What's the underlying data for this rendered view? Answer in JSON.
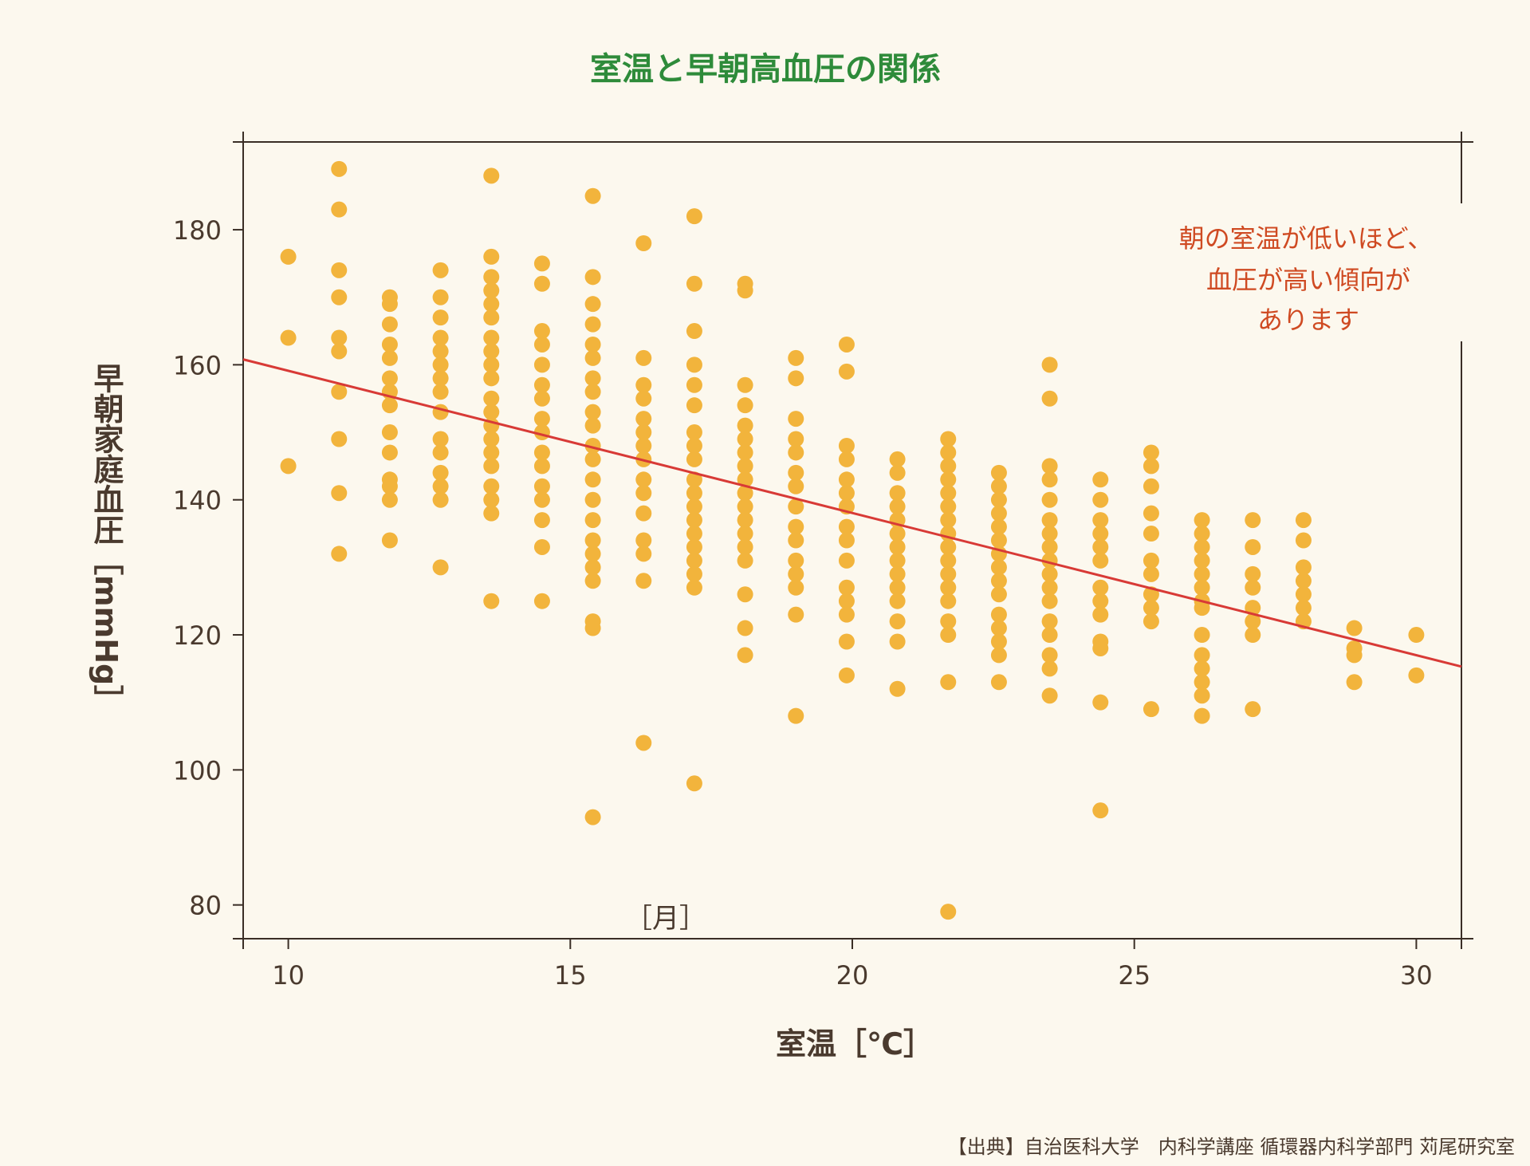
{
  "colors": {
    "background": "#fcf8ee",
    "title": "#2e8b3a",
    "dots": "#f2b43c",
    "trendline": "#d83a36",
    "annotation": "#cf4a22",
    "axis": "#3a2e26",
    "text": "#4a3a2e"
  },
  "source": "【出典】自治医科大学　内科学講座 循環器内科学部門 苅尾研究室",
  "chart_data": {
    "type": "scatter",
    "title": "室温と早朝高血圧の関係",
    "xlabel": "室温［℃］",
    "ylabel": "早朝家庭血圧［mmHg］",
    "xlim": [
      9.2,
      30.8
    ],
    "ylim": [
      75,
      193
    ],
    "x_ticks": [
      10,
      15,
      20,
      25,
      30
    ],
    "y_ticks": [
      80,
      100,
      120,
      140,
      160,
      180
    ],
    "x_tick_labels": [
      "10",
      "15",
      "20",
      "25",
      "30"
    ],
    "y_tick_labels": [
      "80",
      "100",
      "120",
      "140",
      "160",
      "180"
    ],
    "inner_label": "［月］",
    "annotation_lines": [
      "朝の室温が低いほど、",
      "血圧が高い傾向が",
      "あります"
    ],
    "grid": false,
    "trendline": {
      "x": [
        9.2,
        30.8
      ],
      "y": [
        160.8,
        115.3
      ]
    },
    "points": [
      {
        "x": 10,
        "y": 176
      },
      {
        "x": 10,
        "y": 164
      },
      {
        "x": 10,
        "y": 145
      },
      {
        "x": 10.9,
        "y": 189
      },
      {
        "x": 10.9,
        "y": 183
      },
      {
        "x": 10.9,
        "y": 174
      },
      {
        "x": 10.9,
        "y": 170
      },
      {
        "x": 10.9,
        "y": 164
      },
      {
        "x": 10.9,
        "y": 162
      },
      {
        "x": 10.9,
        "y": 156
      },
      {
        "x": 10.9,
        "y": 149
      },
      {
        "x": 10.9,
        "y": 141
      },
      {
        "x": 10.9,
        "y": 132
      },
      {
        "x": 11.8,
        "y": 170
      },
      {
        "x": 11.8,
        "y": 169
      },
      {
        "x": 11.8,
        "y": 166
      },
      {
        "x": 11.8,
        "y": 163
      },
      {
        "x": 11.8,
        "y": 161
      },
      {
        "x": 11.8,
        "y": 158
      },
      {
        "x": 11.8,
        "y": 156
      },
      {
        "x": 11.8,
        "y": 154
      },
      {
        "x": 11.8,
        "y": 150
      },
      {
        "x": 11.8,
        "y": 147
      },
      {
        "x": 11.8,
        "y": 143
      },
      {
        "x": 11.8,
        "y": 142
      },
      {
        "x": 11.8,
        "y": 140
      },
      {
        "x": 11.8,
        "y": 134
      },
      {
        "x": 12.7,
        "y": 174
      },
      {
        "x": 12.7,
        "y": 170
      },
      {
        "x": 12.7,
        "y": 167
      },
      {
        "x": 12.7,
        "y": 164
      },
      {
        "x": 12.7,
        "y": 162
      },
      {
        "x": 12.7,
        "y": 160
      },
      {
        "x": 12.7,
        "y": 158
      },
      {
        "x": 12.7,
        "y": 156
      },
      {
        "x": 12.7,
        "y": 153
      },
      {
        "x": 12.7,
        "y": 149
      },
      {
        "x": 12.7,
        "y": 147
      },
      {
        "x": 12.7,
        "y": 144
      },
      {
        "x": 12.7,
        "y": 142
      },
      {
        "x": 12.7,
        "y": 140
      },
      {
        "x": 12.7,
        "y": 130
      },
      {
        "x": 13.6,
        "y": 188
      },
      {
        "x": 13.6,
        "y": 176
      },
      {
        "x": 13.6,
        "y": 173
      },
      {
        "x": 13.6,
        "y": 171
      },
      {
        "x": 13.6,
        "y": 169
      },
      {
        "x": 13.6,
        "y": 167
      },
      {
        "x": 13.6,
        "y": 164
      },
      {
        "x": 13.6,
        "y": 162
      },
      {
        "x": 13.6,
        "y": 160
      },
      {
        "x": 13.6,
        "y": 158
      },
      {
        "x": 13.6,
        "y": 155
      },
      {
        "x": 13.6,
        "y": 153
      },
      {
        "x": 13.6,
        "y": 151
      },
      {
        "x": 13.6,
        "y": 149
      },
      {
        "x": 13.6,
        "y": 147
      },
      {
        "x": 13.6,
        "y": 145
      },
      {
        "x": 13.6,
        "y": 142
      },
      {
        "x": 13.6,
        "y": 140
      },
      {
        "x": 13.6,
        "y": 138
      },
      {
        "x": 13.6,
        "y": 125
      },
      {
        "x": 14.5,
        "y": 175
      },
      {
        "x": 14.5,
        "y": 172
      },
      {
        "x": 14.5,
        "y": 165
      },
      {
        "x": 14.5,
        "y": 163
      },
      {
        "x": 14.5,
        "y": 160
      },
      {
        "x": 14.5,
        "y": 157
      },
      {
        "x": 14.5,
        "y": 155
      },
      {
        "x": 14.5,
        "y": 152
      },
      {
        "x": 14.5,
        "y": 150
      },
      {
        "x": 14.5,
        "y": 147
      },
      {
        "x": 14.5,
        "y": 145
      },
      {
        "x": 14.5,
        "y": 142
      },
      {
        "x": 14.5,
        "y": 140
      },
      {
        "x": 14.5,
        "y": 137
      },
      {
        "x": 14.5,
        "y": 133
      },
      {
        "x": 14.5,
        "y": 125
      },
      {
        "x": 15.4,
        "y": 185
      },
      {
        "x": 15.4,
        "y": 173
      },
      {
        "x": 15.4,
        "y": 169
      },
      {
        "x": 15.4,
        "y": 166
      },
      {
        "x": 15.4,
        "y": 163
      },
      {
        "x": 15.4,
        "y": 161
      },
      {
        "x": 15.4,
        "y": 158
      },
      {
        "x": 15.4,
        "y": 156
      },
      {
        "x": 15.4,
        "y": 153
      },
      {
        "x": 15.4,
        "y": 151
      },
      {
        "x": 15.4,
        "y": 148
      },
      {
        "x": 15.4,
        "y": 146
      },
      {
        "x": 15.4,
        "y": 143
      },
      {
        "x": 15.4,
        "y": 140
      },
      {
        "x": 15.4,
        "y": 137
      },
      {
        "x": 15.4,
        "y": 134
      },
      {
        "x": 15.4,
        "y": 132
      },
      {
        "x": 15.4,
        "y": 130
      },
      {
        "x": 15.4,
        "y": 128
      },
      {
        "x": 15.4,
        "y": 122
      },
      {
        "x": 15.4,
        "y": 121
      },
      {
        "x": 15.4,
        "y": 93
      },
      {
        "x": 16.3,
        "y": 178
      },
      {
        "x": 16.3,
        "y": 161
      },
      {
        "x": 16.3,
        "y": 157
      },
      {
        "x": 16.3,
        "y": 155
      },
      {
        "x": 16.3,
        "y": 152
      },
      {
        "x": 16.3,
        "y": 150
      },
      {
        "x": 16.3,
        "y": 148
      },
      {
        "x": 16.3,
        "y": 146
      },
      {
        "x": 16.3,
        "y": 143
      },
      {
        "x": 16.3,
        "y": 141
      },
      {
        "x": 16.3,
        "y": 138
      },
      {
        "x": 16.3,
        "y": 134
      },
      {
        "x": 16.3,
        "y": 132
      },
      {
        "x": 16.3,
        "y": 128
      },
      {
        "x": 16.3,
        "y": 104
      },
      {
        "x": 17.2,
        "y": 182
      },
      {
        "x": 17.2,
        "y": 172
      },
      {
        "x": 17.2,
        "y": 165
      },
      {
        "x": 17.2,
        "y": 160
      },
      {
        "x": 17.2,
        "y": 157
      },
      {
        "x": 17.2,
        "y": 154
      },
      {
        "x": 17.2,
        "y": 150
      },
      {
        "x": 17.2,
        "y": 148
      },
      {
        "x": 17.2,
        "y": 146
      },
      {
        "x": 17.2,
        "y": 143
      },
      {
        "x": 17.2,
        "y": 141
      },
      {
        "x": 17.2,
        "y": 139
      },
      {
        "x": 17.2,
        "y": 137
      },
      {
        "x": 17.2,
        "y": 135
      },
      {
        "x": 17.2,
        "y": 133
      },
      {
        "x": 17.2,
        "y": 131
      },
      {
        "x": 17.2,
        "y": 129
      },
      {
        "x": 17.2,
        "y": 127
      },
      {
        "x": 17.2,
        "y": 98
      },
      {
        "x": 18.1,
        "y": 172
      },
      {
        "x": 18.1,
        "y": 171
      },
      {
        "x": 18.1,
        "y": 157
      },
      {
        "x": 18.1,
        "y": 154
      },
      {
        "x": 18.1,
        "y": 151
      },
      {
        "x": 18.1,
        "y": 149
      },
      {
        "x": 18.1,
        "y": 147
      },
      {
        "x": 18.1,
        "y": 145
      },
      {
        "x": 18.1,
        "y": 143
      },
      {
        "x": 18.1,
        "y": 141
      },
      {
        "x": 18.1,
        "y": 139
      },
      {
        "x": 18.1,
        "y": 137
      },
      {
        "x": 18.1,
        "y": 135
      },
      {
        "x": 18.1,
        "y": 133
      },
      {
        "x": 18.1,
        "y": 131
      },
      {
        "x": 18.1,
        "y": 126
      },
      {
        "x": 18.1,
        "y": 121
      },
      {
        "x": 18.1,
        "y": 117
      },
      {
        "x": 19.0,
        "y": 161
      },
      {
        "x": 19.0,
        "y": 158
      },
      {
        "x": 19.0,
        "y": 152
      },
      {
        "x": 19.0,
        "y": 149
      },
      {
        "x": 19.0,
        "y": 147
      },
      {
        "x": 19.0,
        "y": 144
      },
      {
        "x": 19.0,
        "y": 142
      },
      {
        "x": 19.0,
        "y": 139
      },
      {
        "x": 19.0,
        "y": 136
      },
      {
        "x": 19.0,
        "y": 134
      },
      {
        "x": 19.0,
        "y": 131
      },
      {
        "x": 19.0,
        "y": 129
      },
      {
        "x": 19.0,
        "y": 127
      },
      {
        "x": 19.0,
        "y": 123
      },
      {
        "x": 19.0,
        "y": 108
      },
      {
        "x": 19.9,
        "y": 163
      },
      {
        "x": 19.9,
        "y": 159
      },
      {
        "x": 19.9,
        "y": 148
      },
      {
        "x": 19.9,
        "y": 146
      },
      {
        "x": 19.9,
        "y": 143
      },
      {
        "x": 19.9,
        "y": 141
      },
      {
        "x": 19.9,
        "y": 139
      },
      {
        "x": 19.9,
        "y": 136
      },
      {
        "x": 19.9,
        "y": 134
      },
      {
        "x": 19.9,
        "y": 131
      },
      {
        "x": 19.9,
        "y": 127
      },
      {
        "x": 19.9,
        "y": 125
      },
      {
        "x": 19.9,
        "y": 123
      },
      {
        "x": 19.9,
        "y": 119
      },
      {
        "x": 19.9,
        "y": 114
      },
      {
        "x": 20.8,
        "y": 146
      },
      {
        "x": 20.8,
        "y": 144
      },
      {
        "x": 20.8,
        "y": 141
      },
      {
        "x": 20.8,
        "y": 139
      },
      {
        "x": 20.8,
        "y": 137
      },
      {
        "x": 20.8,
        "y": 135
      },
      {
        "x": 20.8,
        "y": 133
      },
      {
        "x": 20.8,
        "y": 131
      },
      {
        "x": 20.8,
        "y": 129
      },
      {
        "x": 20.8,
        "y": 127
      },
      {
        "x": 20.8,
        "y": 125
      },
      {
        "x": 20.8,
        "y": 122
      },
      {
        "x": 20.8,
        "y": 119
      },
      {
        "x": 20.8,
        "y": 112
      },
      {
        "x": 21.7,
        "y": 149
      },
      {
        "x": 21.7,
        "y": 147
      },
      {
        "x": 21.7,
        "y": 145
      },
      {
        "x": 21.7,
        "y": 143
      },
      {
        "x": 21.7,
        "y": 141
      },
      {
        "x": 21.7,
        "y": 139
      },
      {
        "x": 21.7,
        "y": 137
      },
      {
        "x": 21.7,
        "y": 135
      },
      {
        "x": 21.7,
        "y": 133
      },
      {
        "x": 21.7,
        "y": 131
      },
      {
        "x": 21.7,
        "y": 129
      },
      {
        "x": 21.7,
        "y": 127
      },
      {
        "x": 21.7,
        "y": 125
      },
      {
        "x": 21.7,
        "y": 122
      },
      {
        "x": 21.7,
        "y": 120
      },
      {
        "x": 21.7,
        "y": 113
      },
      {
        "x": 21.7,
        "y": 79
      },
      {
        "x": 22.6,
        "y": 144
      },
      {
        "x": 22.6,
        "y": 142
      },
      {
        "x": 22.6,
        "y": 140
      },
      {
        "x": 22.6,
        "y": 138
      },
      {
        "x": 22.6,
        "y": 136
      },
      {
        "x": 22.6,
        "y": 134
      },
      {
        "x": 22.6,
        "y": 132
      },
      {
        "x": 22.6,
        "y": 130
      },
      {
        "x": 22.6,
        "y": 128
      },
      {
        "x": 22.6,
        "y": 126
      },
      {
        "x": 22.6,
        "y": 123
      },
      {
        "x": 22.6,
        "y": 121
      },
      {
        "x": 22.6,
        "y": 119
      },
      {
        "x": 22.6,
        "y": 117
      },
      {
        "x": 22.6,
        "y": 113
      },
      {
        "x": 23.5,
        "y": 160
      },
      {
        "x": 23.5,
        "y": 155
      },
      {
        "x": 23.5,
        "y": 145
      },
      {
        "x": 23.5,
        "y": 143
      },
      {
        "x": 23.5,
        "y": 140
      },
      {
        "x": 23.5,
        "y": 137
      },
      {
        "x": 23.5,
        "y": 135
      },
      {
        "x": 23.5,
        "y": 133
      },
      {
        "x": 23.5,
        "y": 131
      },
      {
        "x": 23.5,
        "y": 129
      },
      {
        "x": 23.5,
        "y": 127
      },
      {
        "x": 23.5,
        "y": 125
      },
      {
        "x": 23.5,
        "y": 122
      },
      {
        "x": 23.5,
        "y": 120
      },
      {
        "x": 23.5,
        "y": 117
      },
      {
        "x": 23.5,
        "y": 115
      },
      {
        "x": 23.5,
        "y": 111
      },
      {
        "x": 24.4,
        "y": 143
      },
      {
        "x": 24.4,
        "y": 140
      },
      {
        "x": 24.4,
        "y": 137
      },
      {
        "x": 24.4,
        "y": 135
      },
      {
        "x": 24.4,
        "y": 133
      },
      {
        "x": 24.4,
        "y": 131
      },
      {
        "x": 24.4,
        "y": 127
      },
      {
        "x": 24.4,
        "y": 125
      },
      {
        "x": 24.4,
        "y": 123
      },
      {
        "x": 24.4,
        "y": 119
      },
      {
        "x": 24.4,
        "y": 118
      },
      {
        "x": 24.4,
        "y": 110
      },
      {
        "x": 24.4,
        "y": 94
      },
      {
        "x": 25.3,
        "y": 147
      },
      {
        "x": 25.3,
        "y": 145
      },
      {
        "x": 25.3,
        "y": 142
      },
      {
        "x": 25.3,
        "y": 138
      },
      {
        "x": 25.3,
        "y": 135
      },
      {
        "x": 25.3,
        "y": 131
      },
      {
        "x": 25.3,
        "y": 129
      },
      {
        "x": 25.3,
        "y": 126
      },
      {
        "x": 25.3,
        "y": 124
      },
      {
        "x": 25.3,
        "y": 122
      },
      {
        "x": 25.3,
        "y": 109
      },
      {
        "x": 26.2,
        "y": 137
      },
      {
        "x": 26.2,
        "y": 135
      },
      {
        "x": 26.2,
        "y": 133
      },
      {
        "x": 26.2,
        "y": 131
      },
      {
        "x": 26.2,
        "y": 129
      },
      {
        "x": 26.2,
        "y": 127
      },
      {
        "x": 26.2,
        "y": 125
      },
      {
        "x": 26.2,
        "y": 124
      },
      {
        "x": 26.2,
        "y": 120
      },
      {
        "x": 26.2,
        "y": 117
      },
      {
        "x": 26.2,
        "y": 115
      },
      {
        "x": 26.2,
        "y": 113
      },
      {
        "x": 26.2,
        "y": 111
      },
      {
        "x": 26.2,
        "y": 108
      },
      {
        "x": 27.1,
        "y": 137
      },
      {
        "x": 27.1,
        "y": 133
      },
      {
        "x": 27.1,
        "y": 129
      },
      {
        "x": 27.1,
        "y": 127
      },
      {
        "x": 27.1,
        "y": 124
      },
      {
        "x": 27.1,
        "y": 122
      },
      {
        "x": 27.1,
        "y": 120
      },
      {
        "x": 27.1,
        "y": 109
      },
      {
        "x": 28.0,
        "y": 137
      },
      {
        "x": 28.0,
        "y": 134
      },
      {
        "x": 28.0,
        "y": 130
      },
      {
        "x": 28.0,
        "y": 128
      },
      {
        "x": 28.0,
        "y": 126
      },
      {
        "x": 28.0,
        "y": 124
      },
      {
        "x": 28.0,
        "y": 122
      },
      {
        "x": 28.9,
        "y": 121
      },
      {
        "x": 28.9,
        "y": 118
      },
      {
        "x": 28.9,
        "y": 117
      },
      {
        "x": 28.9,
        "y": 113
      },
      {
        "x": 30.0,
        "y": 120
      },
      {
        "x": 30.0,
        "y": 114
      }
    ]
  }
}
